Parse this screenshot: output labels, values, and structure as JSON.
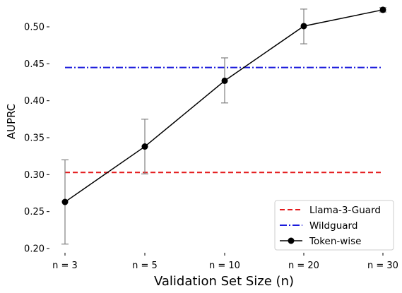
{
  "chart_data": {
    "type": "line",
    "xlabel": "Validation Set Size (n)",
    "ylabel": "AUPRC",
    "categories": [
      "n = 3",
      "n = 5",
      "n = 10",
      "n = 20",
      "n = 30"
    ],
    "ylim": [
      0.19,
      0.525
    ],
    "yticks": [
      0.2,
      0.25,
      0.3,
      0.35,
      0.4,
      0.45,
      0.5
    ],
    "ytick_labels": [
      "0.20",
      "0.25",
      "0.30",
      "0.35",
      "0.40",
      "0.45",
      "0.50"
    ],
    "grid": false,
    "legend_position": "bottom-right",
    "series": [
      {
        "name": "Llama-3-Guard",
        "style": "dashed",
        "color": "#e41a1c",
        "values": [
          0.303,
          0.303,
          0.303,
          0.303,
          0.303
        ]
      },
      {
        "name": "Wildguard",
        "style": "dashdot",
        "color": "#1a1adc",
        "values": [
          0.445,
          0.445,
          0.445,
          0.445,
          0.445
        ]
      },
      {
        "name": "Token-wise",
        "style": "solid-marker",
        "color": "#000000",
        "values": [
          0.263,
          0.338,
          0.427,
          0.501,
          0.523
        ],
        "error_low": [
          0.206,
          0.301,
          0.397,
          0.477,
          0.52
        ],
        "error_high": [
          0.32,
          0.375,
          0.458,
          0.524,
          0.526
        ]
      }
    ],
    "errorbar_color": "#808080"
  }
}
